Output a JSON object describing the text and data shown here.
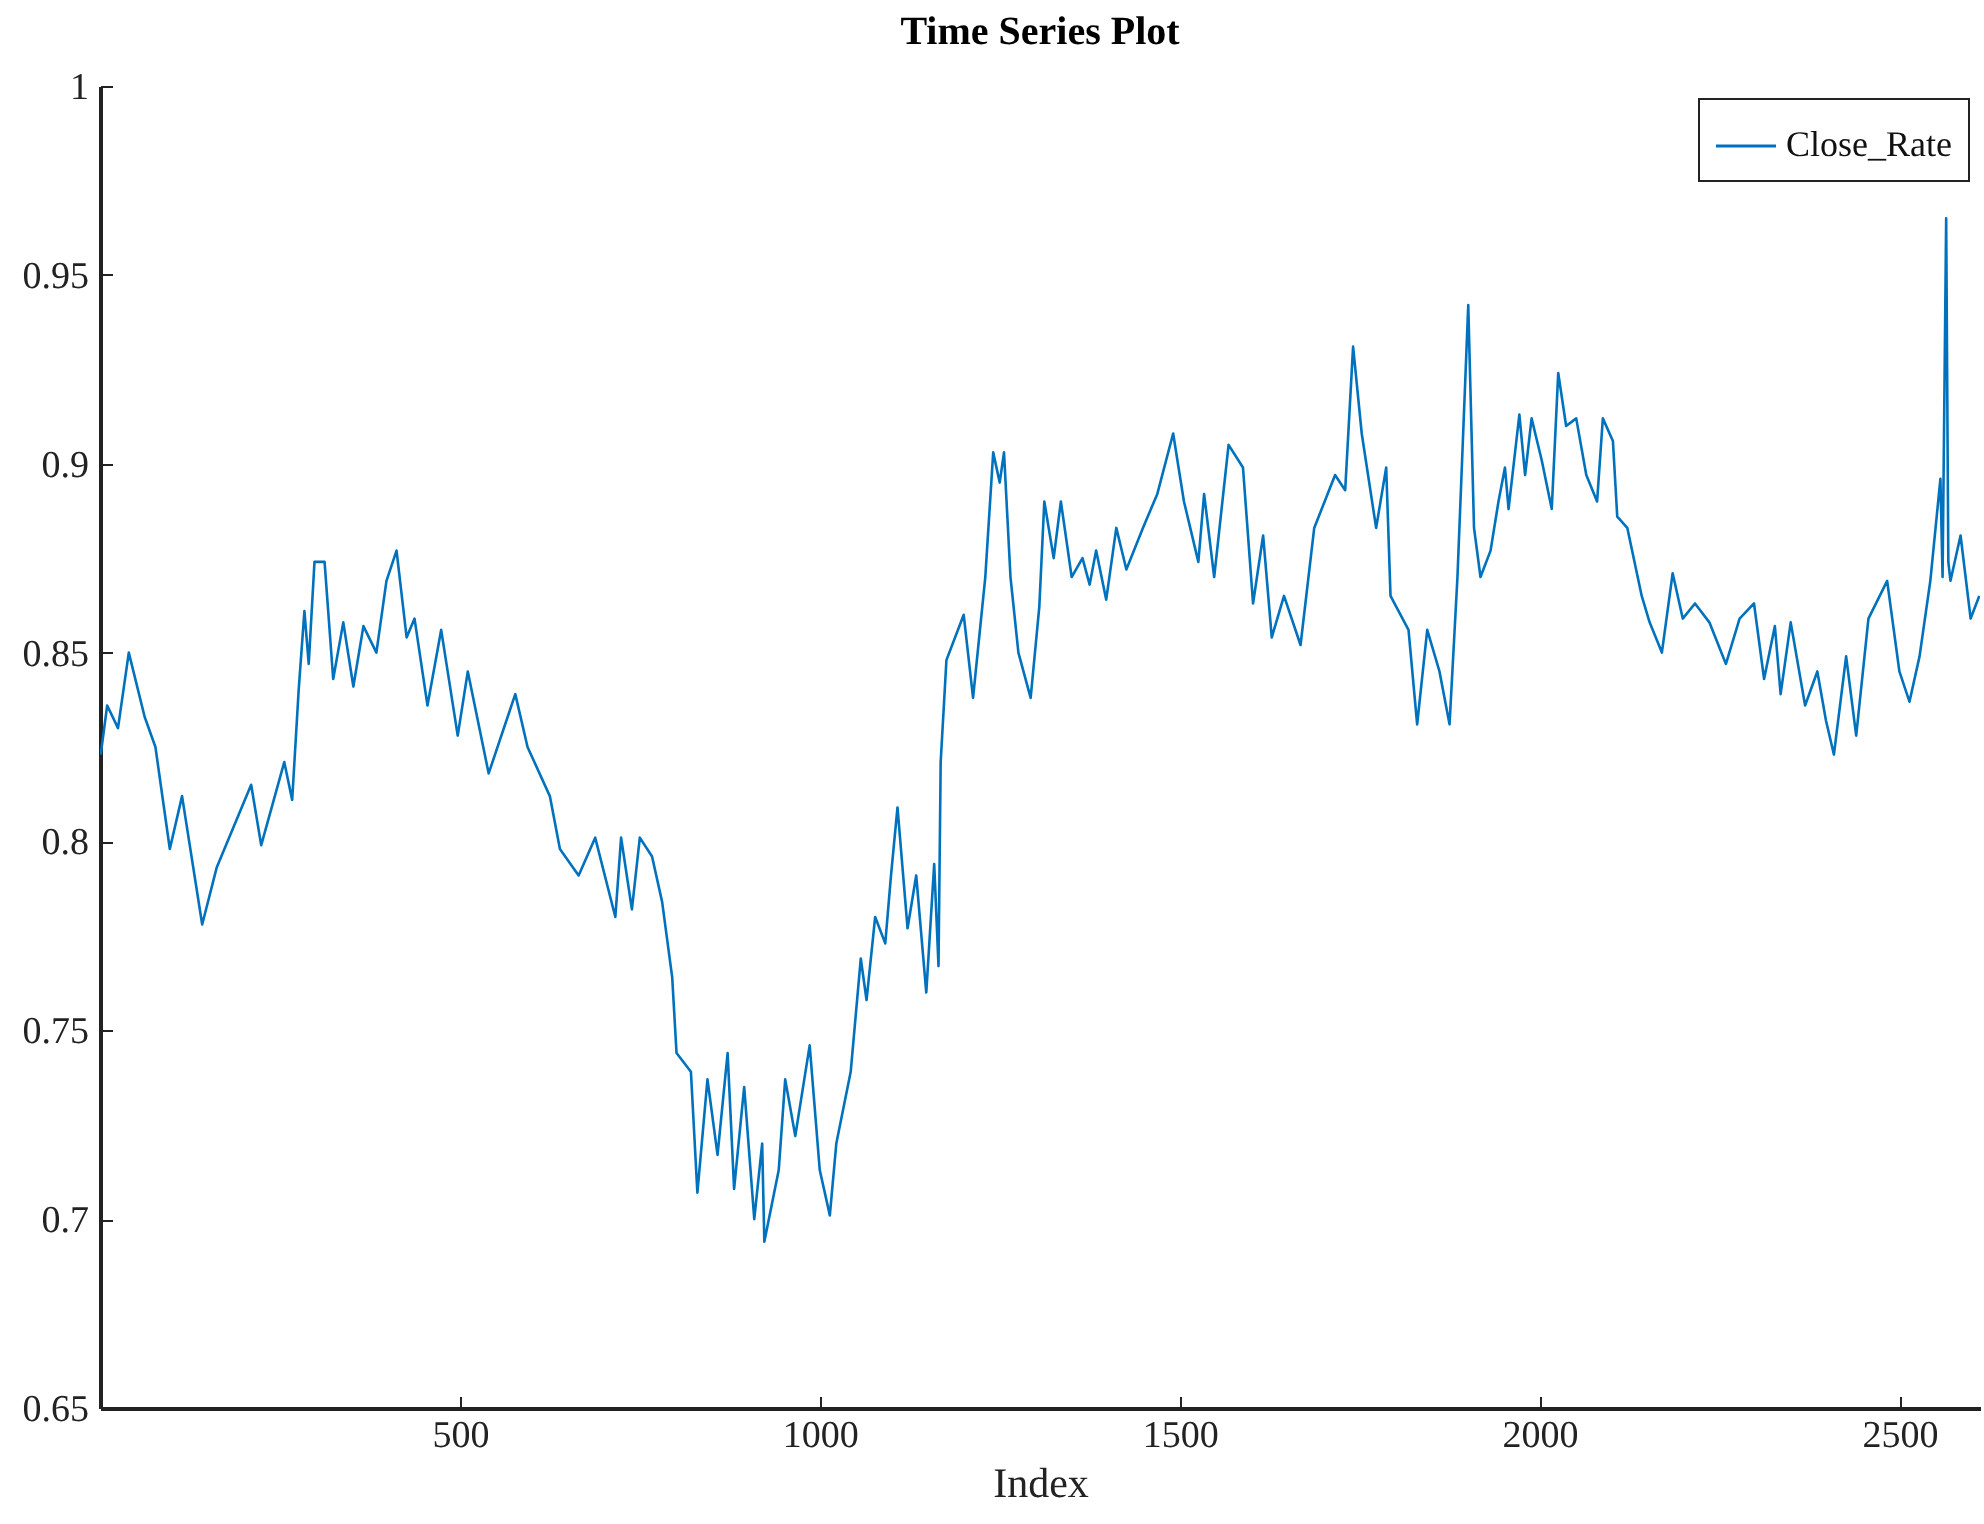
{
  "chart_data": {
    "type": "line",
    "title": "Time Series Plot",
    "xlabel": "Index",
    "xlim": [
      0,
      2612
    ],
    "xticks": [
      500,
      1000,
      1500,
      2000,
      2500
    ],
    "ylim": [
      0.65,
      1
    ],
    "yticks": [
      0.65,
      0.7,
      0.75,
      0.8,
      0.85,
      0.9,
      0.95,
      1
    ],
    "grid": false,
    "legend": "top right",
    "line_style": "solid",
    "marker": "none",
    "x": [
      1,
      10,
      25,
      40,
      62,
      77,
      97,
      114,
      142,
      162,
      210,
      224,
      256,
      267,
      276,
      284,
      290,
      298,
      312,
      324,
      338,
      352,
      366,
      384,
      398,
      412,
      426,
      437,
      455,
      474,
      497,
      511,
      540,
      577,
      594,
      625,
      639,
      665,
      688,
      716,
      724,
      739,
      750,
      767,
      781,
      795,
      801,
      821,
      830,
      844,
      858,
      872,
      881,
      895,
      909,
      920,
      923,
      943,
      952,
      966,
      986,
      1000,
      1014,
      1023,
      1043,
      1057,
      1065,
      1077,
      1091,
      1099,
      1108,
      1122,
      1134,
      1148,
      1159,
      1165,
      1168,
      1176,
      1200,
      1213,
      1230,
      1241,
      1250,
      1256,
      1265,
      1276,
      1293,
      1305,
      1312,
      1325,
      1335,
      1350,
      1365,
      1375,
      1384,
      1398,
      1412,
      1426,
      1449,
      1469,
      1491,
      1506,
      1526,
      1534,
      1548,
      1568,
      1588,
      1602,
      1616,
      1628,
      1645,
      1668,
      1687,
      1716,
      1730,
      1741,
      1753,
      1773,
      1787,
      1793,
      1818,
      1830,
      1844,
      1861,
      1875,
      1886,
      1901,
      1909,
      1918,
      1932,
      1943,
      1952,
      1957,
      1972,
      1980,
      1989,
      2003,
      2017,
      2026,
      2037,
      2051,
      2065,
      2080,
      2088,
      2102,
      2108,
      2122,
      2142,
      2153,
      2170,
      2185,
      2199,
      2216,
      2236,
      2259,
      2278,
      2298,
      2312,
      2327,
      2335,
      2349,
      2369,
      2386,
      2398,
      2409,
      2426,
      2440,
      2457,
      2483,
      2500,
      2514,
      2528,
      2543,
      2557,
      2560,
      2565,
      2568,
      2571,
      2585,
      2599,
      2611
    ],
    "series": [
      {
        "name": "Close_Rate",
        "color": "#0072bd",
        "values": [
          0.823,
          0.836,
          0.83,
          0.85,
          0.833,
          0.825,
          0.798,
          0.812,
          0.778,
          0.793,
          0.815,
          0.799,
          0.821,
          0.811,
          0.84,
          0.861,
          0.847,
          0.874,
          0.874,
          0.843,
          0.858,
          0.841,
          0.857,
          0.85,
          0.869,
          0.877,
          0.854,
          0.859,
          0.836,
          0.856,
          0.828,
          0.845,
          0.818,
          0.839,
          0.825,
          0.812,
          0.798,
          0.791,
          0.801,
          0.78,
          0.801,
          0.782,
          0.801,
          0.796,
          0.784,
          0.764,
          0.744,
          0.739,
          0.707,
          0.737,
          0.717,
          0.744,
          0.708,
          0.735,
          0.7,
          0.72,
          0.694,
          0.713,
          0.737,
          0.722,
          0.746,
          0.713,
          0.701,
          0.72,
          0.739,
          0.769,
          0.758,
          0.78,
          0.773,
          0.791,
          0.809,
          0.777,
          0.791,
          0.76,
          0.794,
          0.767,
          0.821,
          0.848,
          0.86,
          0.838,
          0.87,
          0.903,
          0.895,
          0.903,
          0.87,
          0.85,
          0.838,
          0.862,
          0.89,
          0.875,
          0.89,
          0.87,
          0.875,
          0.868,
          0.877,
          0.864,
          0.883,
          0.872,
          0.883,
          0.892,
          0.908,
          0.89,
          0.874,
          0.892,
          0.87,
          0.905,
          0.899,
          0.863,
          0.881,
          0.854,
          0.865,
          0.852,
          0.883,
          0.897,
          0.893,
          0.931,
          0.908,
          0.883,
          0.899,
          0.865,
          0.856,
          0.831,
          0.856,
          0.845,
          0.831,
          0.87,
          0.942,
          0.883,
          0.87,
          0.877,
          0.89,
          0.899,
          0.888,
          0.913,
          0.897,
          0.912,
          0.901,
          0.888,
          0.924,
          0.91,
          0.912,
          0.897,
          0.89,
          0.912,
          0.906,
          0.886,
          0.883,
          0.865,
          0.858,
          0.85,
          0.871,
          0.859,
          0.863,
          0.858,
          0.847,
          0.859,
          0.863,
          0.843,
          0.857,
          0.839,
          0.858,
          0.836,
          0.845,
          0.832,
          0.823,
          0.849,
          0.828,
          0.859,
          0.869,
          0.845,
          0.837,
          0.849,
          0.869,
          0.896,
          0.87,
          0.965,
          0.874,
          0.869,
          0.881,
          0.859,
          0.865
        ]
      }
    ]
  }
}
